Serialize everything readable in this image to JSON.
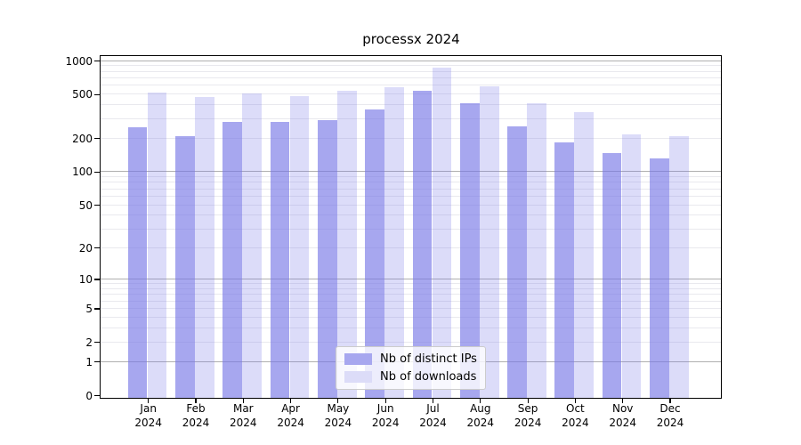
{
  "chart_data": {
    "type": "bar",
    "title": "processx 2024",
    "categories": [
      "Jan",
      "Feb",
      "Mar",
      "Apr",
      "May",
      "Jun",
      "Jul",
      "Aug",
      "Sep",
      "Oct",
      "Nov",
      "Dec"
    ],
    "x_tick_year": "2024",
    "series": [
      {
        "name": "Nb of distinct IPs",
        "bar_color": "rgba(120,120,230,0.65)",
        "solid_color": "#a7a7ef",
        "values": [
          250,
          208,
          283,
          283,
          292,
          362,
          535,
          410,
          258,
          185,
          148,
          131
        ]
      },
      {
        "name": "Nb of downloads",
        "bar_color": "rgba(120,120,230,0.26)",
        "solid_color": "#dcdcf8",
        "values": [
          519,
          473,
          510,
          479,
          538,
          573,
          861,
          587,
          416,
          346,
          218,
          209
        ]
      }
    ],
    "y_scale": "log1p",
    "ylim": [
      0,
      1120
    ],
    "y_ticks": [
      0,
      1,
      2,
      5,
      10,
      20,
      50,
      100,
      200,
      500,
      1000
    ],
    "grid": {
      "major_values": [
        1,
        10,
        100,
        1000
      ],
      "minor_decades": [
        1,
        10,
        100
      ],
      "major_color": "#b0b0b0",
      "minor_color": "#e9e9ee"
    },
    "axis_color": "#000000",
    "background_color": "#ffffff",
    "legend_position": "lower-center-inside"
  }
}
